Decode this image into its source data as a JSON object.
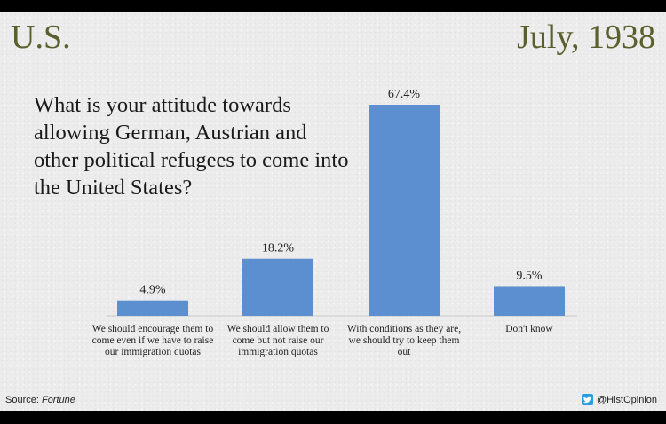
{
  "header": {
    "region": "U.S.",
    "date": "July, 1938"
  },
  "question": "What is your attitude towards allowing German, Austrian and other political refugees to come into the United States?",
  "footer": {
    "source_label": "Source: ",
    "source_name": "Fortune",
    "credit": "@HistOpinion",
    "credit_icon": "twitter-icon"
  },
  "colors": {
    "bar": "#5b8fd0",
    "title": "#5a5f2e",
    "background": "#ececec"
  },
  "chart_data": {
    "type": "bar",
    "title": "",
    "categories": [
      "We should encourage them to come even if we have to raise our immigration quotas",
      "We should allow them to come but not raise our immigration quotas",
      "With conditions as they are, we should try to keep them out",
      "Don't know"
    ],
    "values": [
      4.9,
      18.2,
      67.4,
      9.5
    ],
    "value_labels": [
      "4.9%",
      "18.2%",
      "67.4%",
      "9.5%"
    ],
    "unit": "%",
    "ylim": [
      0,
      67.4
    ],
    "grid": false,
    "legend": "none"
  }
}
